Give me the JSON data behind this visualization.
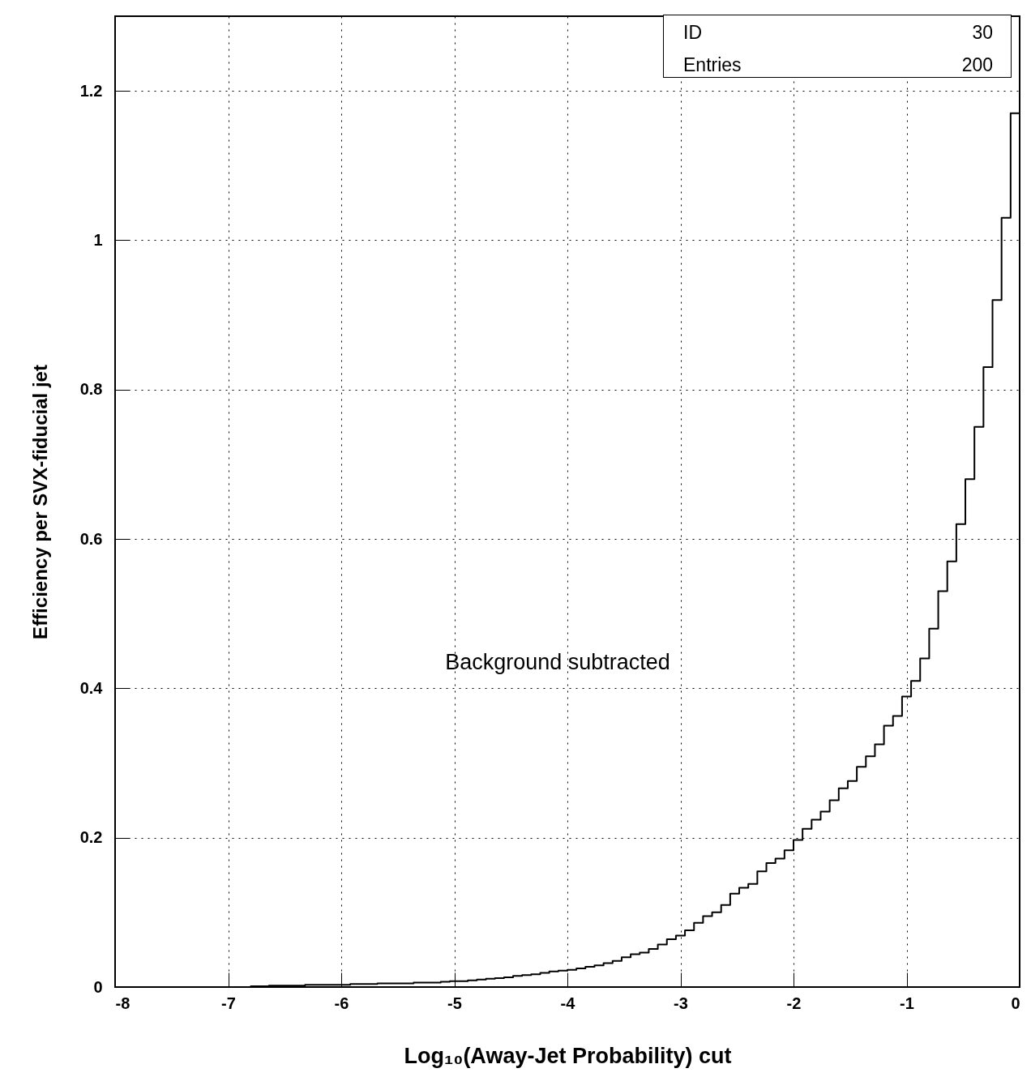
{
  "chart_data": {
    "type": "histogram",
    "xlabel": "Log₁₀(Away-Jet Probability) cut",
    "ylabel": "Efficiency per SVX-fiducial jet",
    "annotations": [
      "Background subtracted",
      "ID",
      "30",
      "Entries",
      "200"
    ],
    "bins": [
      -8,
      -7.92,
      -7.84,
      -7.76,
      -7.68,
      -7.6,
      -7.52,
      -7.44,
      -7.36,
      -7.28,
      -7.2,
      -7.12,
      -7.04,
      -6.96,
      -6.88,
      -6.8,
      -6.72,
      -6.64,
      -6.56,
      -6.48,
      -6.4,
      -6.32,
      -6.24,
      -6.16,
      -6.08,
      -6,
      -5.92,
      -5.84,
      -5.76,
      -5.68,
      -5.6,
      -5.52,
      -5.44,
      -5.36,
      -5.28,
      -5.2,
      -5.12,
      -5.04,
      -4.96,
      -4.88,
      -4.8,
      -4.72,
      -4.64,
      -4.56,
      -4.48,
      -4.4,
      -4.32,
      -4.24,
      -4.16,
      -4.08,
      -4,
      -3.92,
      -3.84,
      -3.76,
      -3.68,
      -3.6,
      -3.52,
      -3.44,
      -3.36,
      -3.28,
      -3.2,
      -3.12,
      -3.04,
      -2.96,
      -2.88,
      -2.8,
      -2.72,
      -2.64,
      -2.56,
      -2.48,
      -2.4,
      -2.32,
      -2.24,
      -2.16,
      -2.08,
      -2,
      -1.92,
      -1.84,
      -1.76,
      -1.68,
      -1.6,
      -1.52,
      -1.44,
      -1.36,
      -1.28,
      -1.2,
      -1.12,
      -1.04,
      -0.96,
      -0.88,
      -0.8,
      -0.72,
      -0.64,
      -0.56,
      -0.48,
      -0.4,
      -0.32,
      -0.24,
      -0.16,
      -0.08,
      0
    ],
    "values": [
      0,
      0,
      0,
      0,
      0,
      0,
      0,
      0,
      0,
      0,
      0,
      0,
      0,
      0,
      0,
      0.001,
      0.001,
      0.002,
      0.002,
      0.002,
      0.002,
      0.003,
      0.003,
      0.003,
      0.003,
      0.003,
      0.004,
      0.004,
      0.004,
      0.005,
      0.005,
      0.005,
      0.005,
      0.006,
      0.006,
      0.006,
      0.007,
      0.008,
      0.008,
      0.009,
      0.01,
      0.011,
      0.012,
      0.013,
      0.015,
      0.016,
      0.017,
      0.019,
      0.021,
      0.022,
      0.023,
      0.025,
      0.027,
      0.029,
      0.032,
      0.035,
      0.04,
      0.044,
      0.046,
      0.051,
      0.057,
      0.064,
      0.069,
      0.076,
      0.086,
      0.095,
      0.1,
      0.11,
      0.125,
      0.133,
      0.138,
      0.155,
      0.166,
      0.172,
      0.183,
      0.197,
      0.212,
      0.224,
      0.235,
      0.25,
      0.266,
      0.276,
      0.295,
      0.309,
      0.325,
      0.35,
      0.363,
      0.389,
      0.41,
      0.44,
      0.48,
      0.53,
      0.57,
      0.62,
      0.68,
      0.75,
      0.83,
      0.92,
      1.03,
      1.17
    ],
    "color": "#000000",
    "xlim": [
      -8,
      0
    ],
    "xticks": [
      -8,
      -7,
      -6,
      -5,
      -4,
      -3,
      -2,
      -1,
      0
    ],
    "ylim": [
      0,
      1.3
    ],
    "yticks": [
      0,
      0.2,
      0.4,
      0.6,
      0.8,
      1,
      1.2
    ],
    "grid": true
  }
}
